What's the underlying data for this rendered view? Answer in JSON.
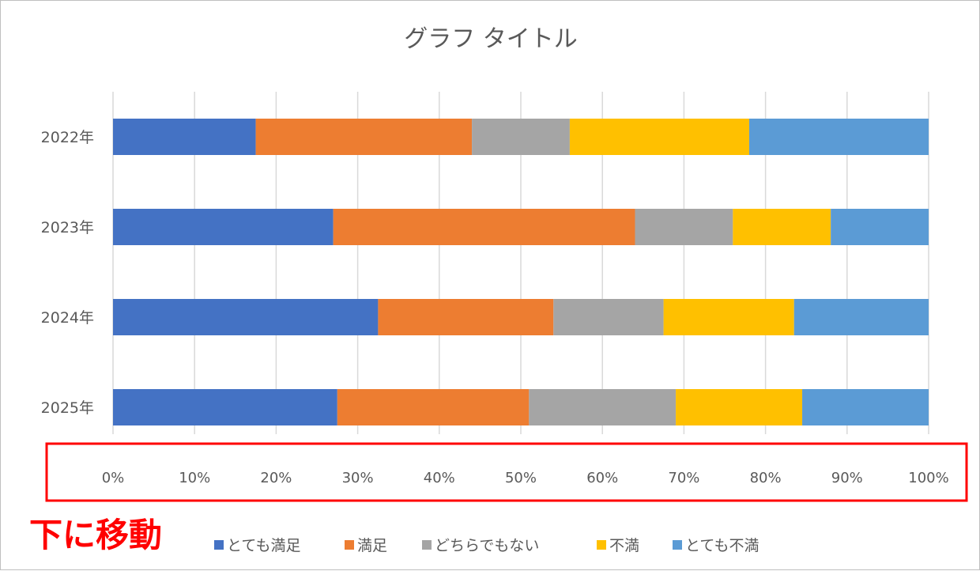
{
  "chart_data": {
    "type": "bar",
    "orientation": "horizontal",
    "stacked": "percent",
    "title": "グラフ タイトル",
    "categories": [
      "2022年",
      "2023年",
      "2024年",
      "2025年"
    ],
    "series": [
      {
        "name": "とても満足",
        "color": "#4472c4",
        "values": [
          17.5,
          27.0,
          32.5,
          27.5
        ]
      },
      {
        "name": "満足",
        "color": "#ed7d31",
        "values": [
          26.5,
          37.0,
          21.5,
          23.5
        ]
      },
      {
        "name": "どちらでもない",
        "color": "#a5a5a5",
        "values": [
          12.0,
          12.0,
          13.5,
          18.0
        ]
      },
      {
        "name": "不満",
        "color": "#ffc000",
        "values": [
          22.0,
          12.0,
          16.0,
          15.5
        ]
      },
      {
        "name": "とても不満",
        "color": "#5b9bd5",
        "values": [
          22.0,
          12.0,
          16.5,
          15.5
        ]
      }
    ],
    "xlim": [
      0,
      100
    ],
    "x_ticks": [
      "0%",
      "10%",
      "20%",
      "30%",
      "40%",
      "50%",
      "60%",
      "70%",
      "80%",
      "90%",
      "100%"
    ],
    "grid": true,
    "legend_position": "bottom",
    "gridline_color": "#d9d9d9"
  },
  "annotation": {
    "text": "下に移動",
    "color": "#ff0000"
  }
}
